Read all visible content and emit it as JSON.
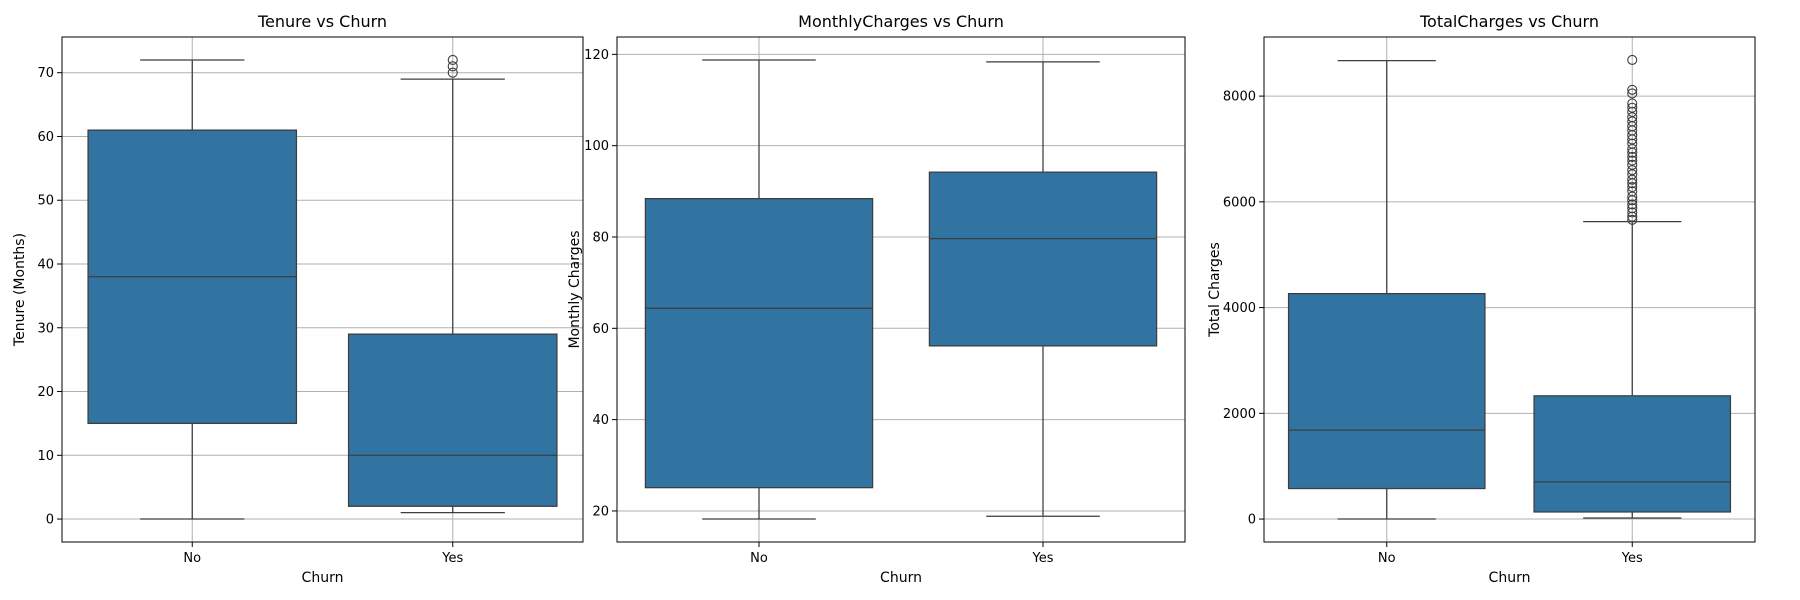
{
  "colors": {
    "box_fill": "#3274a1",
    "box_edge": "#3d3d3d",
    "grid": "#b0b0b0",
    "frame": "#000000"
  },
  "chart_data": [
    {
      "type": "box",
      "title": "Tenure vs Churn",
      "xlabel": "Churn",
      "ylabel": "Tenure (Months)",
      "categories": [
        "No",
        "Yes"
      ],
      "ylim": [
        -3.6,
        75.6
      ],
      "yticks": [
        0,
        10,
        20,
        30,
        40,
        50,
        60,
        70
      ],
      "grid": true,
      "boxes": [
        {
          "category": "No",
          "whisker_low": 0,
          "q1": 15,
          "median": 38,
          "q3": 61,
          "whisker_high": 72,
          "outliers": []
        },
        {
          "category": "Yes",
          "whisker_low": 1,
          "q1": 2,
          "median": 10,
          "q3": 29,
          "whisker_high": 69,
          "outliers": [
            70,
            71,
            72
          ]
        }
      ]
    },
    {
      "type": "box",
      "title": "MonthlyCharges vs Churn",
      "xlabel": "Churn",
      "ylabel": "Monthly Charges",
      "categories": [
        "No",
        "Yes"
      ],
      "ylim": [
        13.2,
        123.8
      ],
      "yticks": [
        20,
        40,
        60,
        80,
        100,
        120
      ],
      "grid": true,
      "boxes": [
        {
          "category": "No",
          "whisker_low": 18.25,
          "q1": 25.1,
          "median": 64.4,
          "q3": 88.4,
          "whisker_high": 118.75,
          "outliers": []
        },
        {
          "category": "Yes",
          "whisker_low": 18.85,
          "q1": 56.15,
          "median": 79.65,
          "q3": 94.2,
          "whisker_high": 118.35,
          "outliers": []
        }
      ]
    },
    {
      "type": "box",
      "title": "TotalCharges vs Churn",
      "xlabel": "Churn",
      "ylabel": "Total Charges",
      "categories": [
        "No",
        "Yes"
      ],
      "ylim": [
        -434,
        9118
      ],
      "yticks": [
        0,
        2000,
        4000,
        6000,
        8000
      ],
      "grid": true,
      "boxes": [
        {
          "category": "No",
          "whisker_low": 0,
          "q1": 577,
          "median": 1683,
          "q3": 4264,
          "whisker_high": 8672,
          "outliers": []
        },
        {
          "category": "Yes",
          "whisker_low": 19,
          "q1": 134,
          "median": 704,
          "q3": 2331,
          "whisker_high": 5625,
          "outliers": [
            5660,
            5720,
            5800,
            5880,
            5950,
            6030,
            6100,
            6200,
            6280,
            6350,
            6420,
            6520,
            6600,
            6700,
            6780,
            6850,
            6930,
            7000,
            7100,
            7180,
            7260,
            7350,
            7430,
            7520,
            7600,
            7700,
            7780,
            7860,
            8050,
            8120,
            8685
          ]
        }
      ]
    }
  ]
}
